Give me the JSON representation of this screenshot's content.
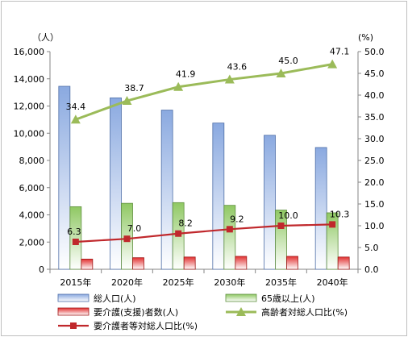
{
  "chart_data": {
    "type": "bar",
    "categories": [
      "2015年",
      "2020年",
      "2025年",
      "2030年",
      "2035年",
      "2040年"
    ],
    "left_axis": {
      "unit": "（人）",
      "ylim": [
        0,
        16000
      ],
      "ticks": [
        "0",
        "2,000",
        "4,000",
        "6,000",
        "8,000",
        "10,000",
        "12,000",
        "14,000",
        "16,000"
      ]
    },
    "right_axis": {
      "unit": "(%)",
      "ylim": [
        0,
        50
      ],
      "ticks": [
        "0.0",
        "5.0",
        "10.0",
        "15.0",
        "20.0",
        "25.0",
        "30.0",
        "35.0",
        "40.0",
        "45.0",
        "50.0"
      ]
    },
    "series": [
      {
        "name": "総人口(人)",
        "type": "bar",
        "axis": "left",
        "color": "#7f9fd8",
        "values": [
          13450,
          12600,
          11700,
          10750,
          9850,
          8950
        ]
      },
      {
        "name": "65歳以上(人)",
        "type": "bar",
        "axis": "left",
        "color": "#8fc863",
        "values": [
          4600,
          4850,
          4900,
          4700,
          4350,
          4150
        ]
      },
      {
        "name": "要介護(支援)者数(人)",
        "type": "bar",
        "axis": "left",
        "color": "#e03030",
        "values": [
          750,
          850,
          900,
          950,
          950,
          900
        ]
      },
      {
        "name": "高齢者対総人口比(%)",
        "type": "line",
        "axis": "right",
        "color": "#9bbb59",
        "marker": "triangle",
        "values": [
          34.4,
          38.7,
          41.9,
          43.6,
          45.0,
          47.1
        ],
        "labels": [
          "34.4",
          "38.7",
          "41.9",
          "43.6",
          "45.0",
          "47.1"
        ]
      },
      {
        "name": "要介護者等対総人口比(%)",
        "type": "line",
        "axis": "right",
        "color": "#c0282c",
        "marker": "square",
        "values": [
          6.3,
          7.0,
          8.2,
          9.2,
          10.0,
          10.3
        ],
        "labels": [
          "6.3",
          "7.0",
          "8.2",
          "9.2",
          "10.0",
          "10.3"
        ]
      }
    ],
    "grid": false,
    "legend_position": "bottom"
  }
}
